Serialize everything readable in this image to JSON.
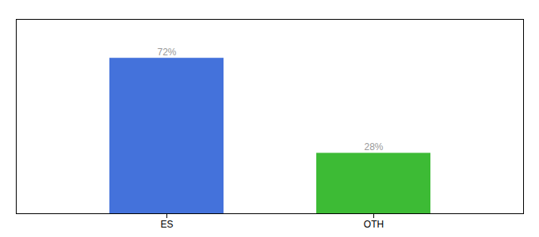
{
  "chart_data": {
    "type": "bar",
    "categories": [
      "ES",
      "OTH"
    ],
    "values": [
      72,
      28
    ],
    "value_labels": [
      "72%",
      "28%"
    ],
    "colors": [
      "#4472db",
      "#3dbb35"
    ],
    "ylim": [
      0,
      90
    ],
    "yticks": [],
    "grid": false,
    "data_labels": true,
    "tick_labels": "x"
  }
}
